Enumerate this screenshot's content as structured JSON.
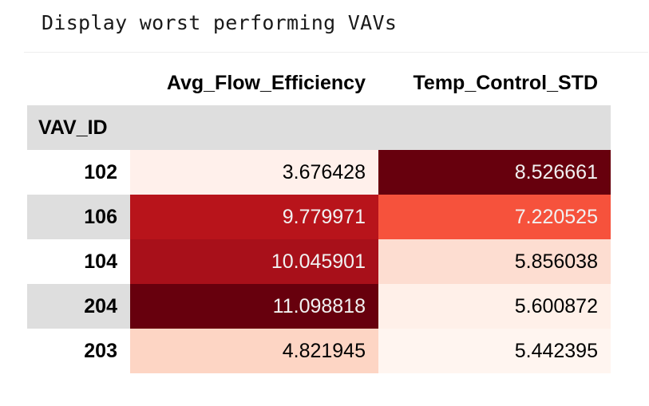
{
  "cell": {
    "text": "Display worst performing VAVs"
  },
  "table": {
    "index_name": "VAV_ID",
    "columns": [
      "Avg_Flow_Efficiency",
      "Temp_Control_STD"
    ],
    "rows": [
      {
        "index": "102",
        "values": [
          "3.676428",
          "8.526661"
        ],
        "colors": {
          "bg": [
            "#fff0eb",
            "#67000d"
          ],
          "fg": [
            "#000000",
            "#f1f1f1"
          ]
        }
      },
      {
        "index": "106",
        "values": [
          "9.779971",
          "7.220525"
        ],
        "colors": {
          "bg": [
            "#b8141b",
            "#f6523c"
          ],
          "fg": [
            "#f1f1f1",
            "#f1f1f1"
          ]
        }
      },
      {
        "index": "104",
        "values": [
          "10.045901",
          "5.856038"
        ],
        "colors": {
          "bg": [
            "#a8101a",
            "#fdddd1"
          ],
          "fg": [
            "#f1f1f1",
            "#000000"
          ]
        }
      },
      {
        "index": "204",
        "values": [
          "11.098818",
          "5.600872"
        ],
        "colors": {
          "bg": [
            "#67000d",
            "#fff0e9"
          ],
          "fg": [
            "#f1f1f1",
            "#000000"
          ]
        }
      },
      {
        "index": "203",
        "values": [
          "4.821945",
          "5.442395"
        ],
        "colors": {
          "bg": [
            "#fdd5c4",
            "#fff5f0"
          ],
          "fg": [
            "#000000",
            "#000000"
          ]
        }
      }
    ]
  }
}
